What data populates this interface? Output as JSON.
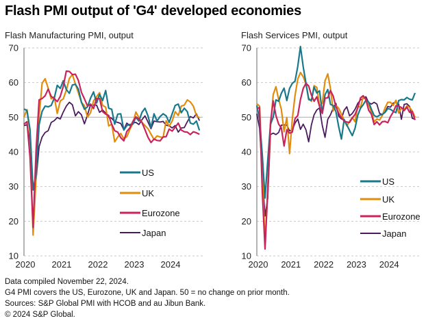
{
  "title": "Flash PMI output of 'G4' developed economies",
  "footer": [
    "Data compiled November 22, 2024.",
    "G4 PMI covers the US, Eurozone, UK and Japan. 50 = no change on prior month.",
    "Sources: S&P Global PMI with HCOB and au Jibun Bank.",
    "© 2024 S&P Global."
  ],
  "colors": {
    "US": "#17798b",
    "UK": "#e28c0b",
    "Eurozone": "#c8235b",
    "Japan": "#4a1a5c",
    "grid": "#c8c8c8",
    "axis": "#9a9a9a"
  },
  "chart_data": [
    {
      "type": "line",
      "title": "Flash Manufacturing PMI, output",
      "xlabel": "",
      "ylabel": "",
      "ylim": [
        10,
        70
      ],
      "yticks": [
        10,
        20,
        30,
        40,
        50,
        60,
        70
      ],
      "xticks": [
        "2020",
        "2021",
        "2022",
        "2023",
        "2024"
      ],
      "x_start": "2020-01",
      "x_end": "2024-11",
      "grid": true,
      "legend": "center-right",
      "series": [
        {
          "name": "US",
          "values": [
            52.4,
            51.9,
            46.5,
            29.0,
            33.5,
            47.9,
            51.7,
            53.2,
            53.0,
            53.4,
            55.5,
            59.2,
            58.3,
            60.5,
            58.0,
            56.9,
            59.3,
            59.5,
            58.1,
            54.3,
            52.3,
            53.0,
            55.5,
            57.3,
            54.1,
            56.6,
            54.8,
            57.7,
            52.6,
            52.3,
            48.0,
            50.9,
            51.0,
            46.3,
            47.6,
            47.9,
            48.0,
            50.0,
            48.9,
            51.4,
            52.6,
            50.4,
            47.0,
            51.0,
            48.9,
            50.2,
            51.0,
            50.4,
            48.5,
            51.0,
            53.4,
            53.8,
            51.3,
            52.6,
            51.6,
            48.3,
            48.0,
            48.9,
            46.2
          ]
        },
        {
          "name": "UK",
          "values": [
            50.0,
            52.2,
            45.5,
            16.0,
            32.6,
            50.0,
            59.8,
            61.1,
            58.4,
            55.3,
            55.9,
            51.1,
            54.7,
            55.3,
            57.8,
            61.2,
            62.3,
            59.6,
            57.0,
            54.3,
            53.3,
            50.0,
            51.3,
            54.7,
            55.9,
            57.1,
            53.4,
            52.9,
            47.5,
            48.0,
            42.9,
            44.3,
            45.3,
            43.8,
            44.4,
            46.5,
            48.2,
            51.5,
            49.9,
            48.5,
            47.6,
            46.7,
            45.1,
            43.6,
            44.6,
            44.3,
            44.2,
            49.0,
            47.4,
            48.9,
            51.6,
            50.5,
            53.2,
            53.5,
            55.0,
            54.4,
            53.2,
            50.5,
            49.8
          ]
        },
        {
          "name": "Eurozone",
          "values": [
            48.0,
            48.7,
            38.5,
            18.2,
            40.6,
            55.0,
            55.4,
            56.2,
            58.1,
            56.0,
            55.4,
            54.5,
            56.0,
            58.9,
            63.3,
            63.2,
            62.3,
            62.4,
            60.6,
            57.2,
            55.3,
            53.2,
            53.8,
            52.5,
            55.4,
            55.4,
            51.6,
            50.9,
            50.5,
            48.0,
            46.1,
            45.7,
            44.1,
            43.2,
            45.9,
            46.9,
            48.8,
            50.1,
            49.5,
            48.5,
            46.4,
            44.2,
            42.7,
            43.7,
            43.3,
            43.2,
            44.3,
            44.4,
            46.6,
            46.0,
            47.1,
            48.3,
            46.3,
            45.8,
            45.7,
            45.0,
            45.8,
            45.5,
            45.1
          ]
        },
        {
          "name": "Japan",
          "values": [
            47.6,
            47.8,
            42.9,
            30.0,
            32.0,
            41.5,
            44.3,
            45.6,
            46.1,
            48.5,
            49.0,
            49.9,
            49.5,
            51.5,
            53.2,
            54.3,
            53.6,
            50.4,
            51.6,
            50.7,
            48.1,
            50.7,
            53.6,
            53.5,
            53.5,
            51.4,
            52.1,
            51.2,
            50.0,
            49.7,
            48.7,
            48.5,
            48.2,
            46.4,
            48.3,
            47.6,
            48.3,
            48.5,
            47.9,
            49.3,
            50.4,
            48.6,
            46.7,
            48.9,
            48.7,
            48.6,
            48.8,
            47.7,
            47.5,
            46.9,
            47.6,
            45.7,
            46.9,
            47.0,
            48.7,
            50.2,
            49.8,
            51.0,
            49.0
          ]
        }
      ]
    },
    {
      "type": "line",
      "title": "Flash Services PMI, output",
      "xlabel": "",
      "ylabel": "",
      "ylim": [
        10,
        70
      ],
      "yticks": [
        10,
        20,
        30,
        40,
        50,
        60,
        70
      ],
      "xticks": [
        "2020",
        "2021",
        "2022",
        "2023",
        "2024"
      ],
      "x_start": "2020-01",
      "x_end": "2024-11",
      "grid": true,
      "legend": "center-right",
      "series": [
        {
          "name": "US",
          "values": [
            53.4,
            49.4,
            39.1,
            26.7,
            37.5,
            47.9,
            50.0,
            55.0,
            54.6,
            56.9,
            58.4,
            54.8,
            58.3,
            59.8,
            60.4,
            64.7,
            70.4,
            64.6,
            59.9,
            55.1,
            54.9,
            58.7,
            57.0,
            57.6,
            51.2,
            56.5,
            58.0,
            53.7,
            53.4,
            51.6,
            47.3,
            43.7,
            49.3,
            47.8,
            46.2,
            44.7,
            46.8,
            50.6,
            52.6,
            53.6,
            54.9,
            54.4,
            52.3,
            50.5,
            50.1,
            50.6,
            50.8,
            51.4,
            52.5,
            52.3,
            51.7,
            51.3,
            54.8,
            55.1,
            55.0,
            55.7,
            55.2,
            55.0,
            57.0
          ]
        },
        {
          "name": "UK",
          "values": [
            53.9,
            53.2,
            34.5,
            13.4,
            29.0,
            47.1,
            56.5,
            58.8,
            55.1,
            52.3,
            45.8,
            49.9,
            39.5,
            49.5,
            56.3,
            61.0,
            62.9,
            61.7,
            59.6,
            55.5,
            54.6,
            59.1,
            58.6,
            53.2,
            54.1,
            60.5,
            62.5,
            58.3,
            51.8,
            53.4,
            52.6,
            50.9,
            49.2,
            47.5,
            48.8,
            49.9,
            48.7,
            53.3,
            52.8,
            55.9,
            55.1,
            53.7,
            51.5,
            48.7,
            49.5,
            49.2,
            50.5,
            52.7,
            54.3,
            54.3,
            53.4,
            54.9,
            51.2,
            52.7,
            52.1,
            53.3,
            52.8,
            51.8,
            50.0
          ]
        },
        {
          "name": "Eurozone",
          "values": [
            52.5,
            52.8,
            28.4,
            12.0,
            28.7,
            48.3,
            54.7,
            50.5,
            48.0,
            46.9,
            41.7,
            46.4,
            45.4,
            45.7,
            49.6,
            50.5,
            55.1,
            58.3,
            59.8,
            59.0,
            56.4,
            54.6,
            55.9,
            53.1,
            51.1,
            55.5,
            55.6,
            57.7,
            56.1,
            53.0,
            51.2,
            49.8,
            48.9,
            48.6,
            48.5,
            49.8,
            50.8,
            52.7,
            55.6,
            56.2,
            55.1,
            52.0,
            50.9,
            47.9,
            48.7,
            47.8,
            48.7,
            48.8,
            48.4,
            50.2,
            51.5,
            53.3,
            53.2,
            52.8,
            51.9,
            52.9,
            51.4,
            51.6,
            49.2
          ]
        },
        {
          "name": "Japan",
          "values": [
            51.0,
            46.8,
            33.8,
            21.5,
            26.5,
            45.0,
            45.4,
            45.0,
            45.6,
            47.7,
            47.8,
            47.7,
            46.1,
            46.3,
            48.3,
            49.5,
            46.5,
            48.0,
            46.4,
            42.9,
            47.8,
            50.7,
            52.1,
            52.7,
            47.6,
            44.2,
            49.4,
            50.7,
            52.6,
            54.0,
            50.3,
            49.5,
            52.0,
            53.0,
            50.4,
            51.1,
            52.3,
            54.0,
            55.0,
            55.4,
            55.9,
            54.2,
            53.8,
            54.3,
            53.8,
            51.1,
            50.8,
            51.5,
            53.1,
            52.9,
            54.1,
            54.3,
            53.8,
            49.4,
            53.7,
            53.9,
            53.1,
            49.7,
            49.4
          ]
        }
      ]
    }
  ]
}
